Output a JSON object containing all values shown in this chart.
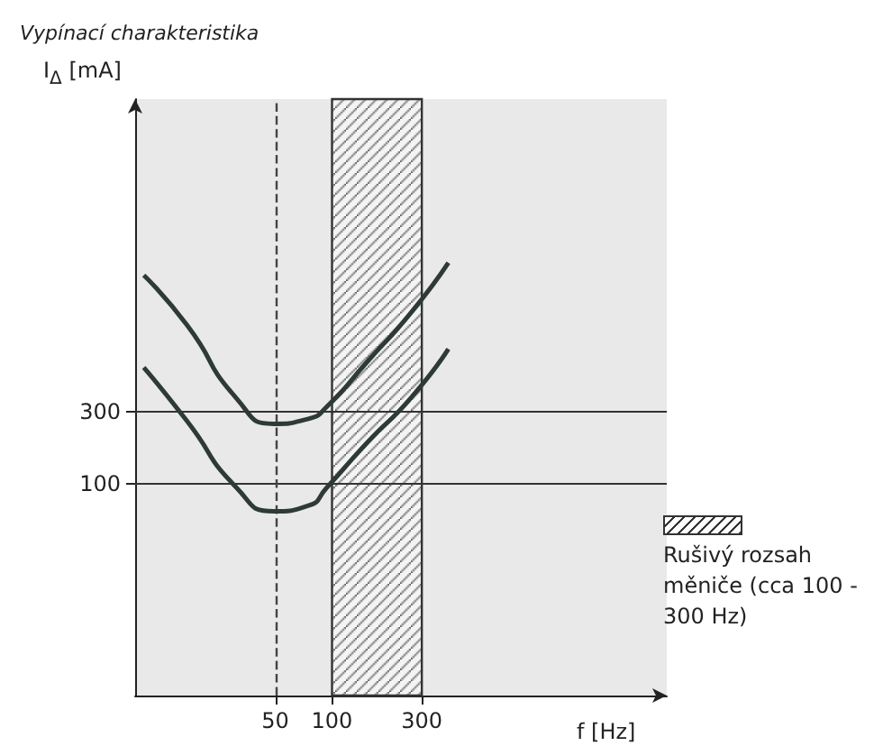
{
  "chart_data": {
    "type": "line",
    "title": "Vypínací charakteristika",
    "xlabel": "f [Hz]",
    "ylabel": "I$_{Δ}$ [mA]",
    "log": "xy",
    "xlim": [
      9,
      6000
    ],
    "xticks": [
      50,
      100,
      300
    ],
    "ylim": [
      4,
      35000
    ],
    "yticks": [
      100,
      300
    ],
    "grid": "y",
    "marker": "none",
    "line_style": "solid",
    "series": [
      {
        "color": "#2e3b35",
        "x": [
          10,
          17,
          31,
          49,
          75,
          94,
          155,
          262,
          415
        ],
        "values": [
          2400,
          1120,
          370,
          250,
          270,
          325,
          650,
          1350,
          2900
        ]
      },
      {
        "color": "#2e3b35",
        "x": [
          10,
          17,
          31,
          49,
          75,
          94,
          155,
          262,
          415
        ],
        "values": [
          590,
          260,
          95,
          66,
          72,
          95,
          190,
          370,
          780
        ]
      }
    ],
    "ref_lines": [
      {
        "axis": "x",
        "value": 50,
        "line_style": "dashed",
        "color": "#444444"
      }
    ],
    "bands": [
      {
        "axis": "x",
        "from": 100,
        "to": 300,
        "label": "Rušivý rozsah měniče (cca 100 - 300 Hz)",
        "color": "#333333"
      }
    ]
  }
}
